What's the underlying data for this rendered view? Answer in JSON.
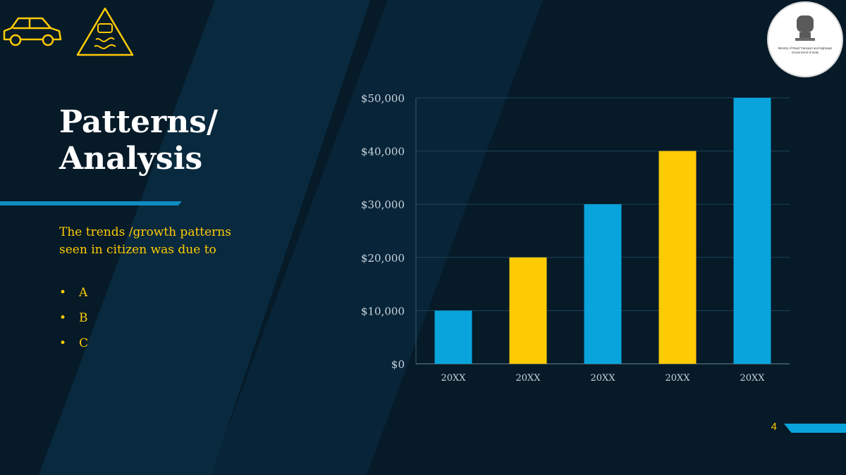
{
  "slide": {
    "title": "Patterns/\nAnalysis",
    "body": "The trends /growth patterns seen in citizen was due to",
    "bullets": [
      "A",
      "B",
      "C"
    ],
    "page_number": "4"
  },
  "logo": {
    "name": "Ministry of Road Transport and Highways Government of India"
  },
  "icons": [
    "car-icon",
    "slippery-road-warning-icon"
  ],
  "colors": {
    "background": "#061a28",
    "panel": "#0b2d42",
    "accent_blue": "#0aa4dc",
    "accent_yellow": "#ffcb05",
    "title": "#ffffff",
    "axis_text": "#c9d6df"
  },
  "chart_data": {
    "type": "bar",
    "categories": [
      "20XX",
      "20XX",
      "20XX",
      "20XX",
      "20XX"
    ],
    "values": [
      10000,
      20000,
      30000,
      40000,
      50000
    ],
    "bar_colors": [
      "#0aa4dc",
      "#ffcb05",
      "#0aa4dc",
      "#ffcb05",
      "#0aa4dc"
    ],
    "title": "",
    "xlabel": "",
    "ylabel": "",
    "ylim": [
      0,
      50000
    ],
    "yticks": [
      0,
      10000,
      20000,
      30000,
      40000,
      50000
    ],
    "ytick_labels": [
      "$0",
      "$10,000",
      "$20,000",
      "$30,000",
      "$40,000",
      "$50,000"
    ],
    "grid": true,
    "legend": "none"
  }
}
